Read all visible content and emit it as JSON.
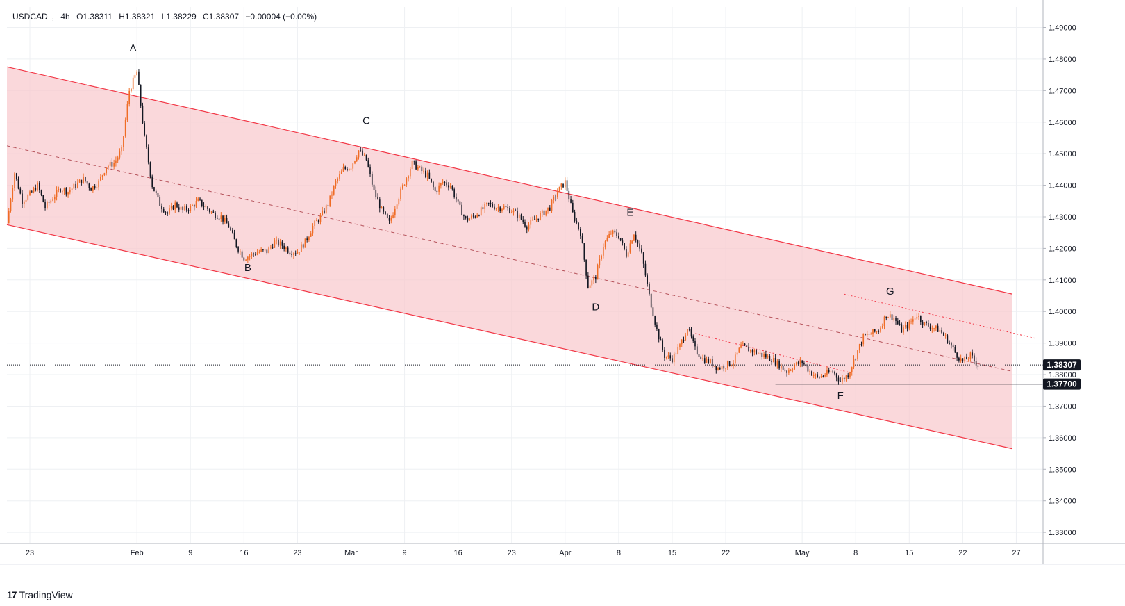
{
  "legend": {
    "symbol": "USDCAD",
    "interval": "4h",
    "open": "O1.38311",
    "high": "H1.38321",
    "low": "L1.38229",
    "close": "C1.38307",
    "change": "−0.00004 (−0.00%)"
  },
  "brand": {
    "logo": "17",
    "name": "TradingView"
  },
  "colors": {
    "channel_fill": "#f8c8cc",
    "channel_line": "#f23645",
    "bull_candle": "#ef6c25",
    "bear_candle": "#131722",
    "current_price_badge": "#131722",
    "support_badge": "#131722"
  },
  "chart_data": {
    "type": "candlestick",
    "symbol": "USDCAD",
    "interval": "4h",
    "ylim": [
      1.3265,
      1.4965
    ],
    "y_ticks": [
      "1.49000",
      "1.48000",
      "1.47000",
      "1.46000",
      "1.45000",
      "1.44000",
      "1.43000",
      "1.42000",
      "1.41000",
      "1.40000",
      "1.39000",
      "1.38000",
      "1.37000",
      "1.36000",
      "1.35000",
      "1.34000",
      "1.33000"
    ],
    "x_ticks": [
      "23",
      "Feb",
      "9",
      "16",
      "23",
      "Mar",
      "9",
      "16",
      "23",
      "Apr",
      "8",
      "15",
      "22",
      "May",
      "8",
      "15",
      "22",
      "27"
    ],
    "x_tick_index": [
      0,
      14,
      21,
      28,
      35,
      42,
      49,
      56,
      63,
      70,
      77,
      84,
      91,
      101,
      108,
      115,
      122,
      129
    ],
    "x_range_index": [
      -3,
      132.5
    ],
    "current_price": "1.38307",
    "support_price": "1.37700",
    "price_path": [
      {
        "i": -3,
        "p": 1.428
      },
      {
        "i": -2,
        "p": 1.444
      },
      {
        "i": -1,
        "p": 1.435
      },
      {
        "i": 0,
        "p": 1.437
      },
      {
        "i": 1,
        "p": 1.44
      },
      {
        "i": 2,
        "p": 1.433
      },
      {
        "i": 3,
        "p": 1.436
      },
      {
        "i": 4,
        "p": 1.439
      },
      {
        "i": 5,
        "p": 1.438
      },
      {
        "i": 6,
        "p": 1.44
      },
      {
        "i": 7,
        "p": 1.442
      },
      {
        "i": 8,
        "p": 1.439
      },
      {
        "i": 9,
        "p": 1.441
      },
      {
        "i": 10,
        "p": 1.446
      },
      {
        "i": 11,
        "p": 1.447
      },
      {
        "i": 12,
        "p": 1.451
      },
      {
        "i": 13,
        "p": 1.47
      },
      {
        "i": 14,
        "p": 1.476
      },
      {
        "i": 15,
        "p": 1.455
      },
      {
        "i": 16,
        "p": 1.44
      },
      {
        "i": 17,
        "p": 1.434
      },
      {
        "i": 18,
        "p": 1.431
      },
      {
        "i": 19,
        "p": 1.434
      },
      {
        "i": 20,
        "p": 1.432
      },
      {
        "i": 21,
        "p": 1.433
      },
      {
        "i": 22,
        "p": 1.435
      },
      {
        "i": 23,
        "p": 1.433
      },
      {
        "i": 24,
        "p": 1.431
      },
      {
        "i": 25,
        "p": 1.43
      },
      {
        "i": 26,
        "p": 1.427
      },
      {
        "i": 27,
        "p": 1.421
      },
      {
        "i": 28,
        "p": 1.417
      },
      {
        "i": 29,
        "p": 1.418
      },
      {
        "i": 30,
        "p": 1.419
      },
      {
        "i": 31,
        "p": 1.419
      },
      {
        "i": 32,
        "p": 1.422
      },
      {
        "i": 33,
        "p": 1.421
      },
      {
        "i": 34,
        "p": 1.419
      },
      {
        "i": 35,
        "p": 1.419
      },
      {
        "i": 36,
        "p": 1.422
      },
      {
        "i": 37,
        "p": 1.427
      },
      {
        "i": 38,
        "p": 1.43
      },
      {
        "i": 39,
        "p": 1.434
      },
      {
        "i": 40,
        "p": 1.441
      },
      {
        "i": 41,
        "p": 1.445
      },
      {
        "i": 42,
        "p": 1.446
      },
      {
        "i": 43,
        "p": 1.451
      },
      {
        "i": 44,
        "p": 1.448
      },
      {
        "i": 45,
        "p": 1.438
      },
      {
        "i": 46,
        "p": 1.432
      },
      {
        "i": 47,
        "p": 1.428
      },
      {
        "i": 48,
        "p": 1.435
      },
      {
        "i": 49,
        "p": 1.441
      },
      {
        "i": 50,
        "p": 1.447
      },
      {
        "i": 51,
        "p": 1.445
      },
      {
        "i": 52,
        "p": 1.443
      },
      {
        "i": 53,
        "p": 1.438
      },
      {
        "i": 54,
        "p": 1.441
      },
      {
        "i": 55,
        "p": 1.44
      },
      {
        "i": 56,
        "p": 1.434
      },
      {
        "i": 57,
        "p": 1.429
      },
      {
        "i": 58,
        "p": 1.43
      },
      {
        "i": 59,
        "p": 1.432
      },
      {
        "i": 60,
        "p": 1.434
      },
      {
        "i": 61,
        "p": 1.433
      },
      {
        "i": 62,
        "p": 1.433
      },
      {
        "i": 63,
        "p": 1.432
      },
      {
        "i": 64,
        "p": 1.43
      },
      {
        "i": 65,
        "p": 1.427
      },
      {
        "i": 66,
        "p": 1.429
      },
      {
        "i": 67,
        "p": 1.431
      },
      {
        "i": 68,
        "p": 1.433
      },
      {
        "i": 69,
        "p": 1.438
      },
      {
        "i": 70,
        "p": 1.441
      },
      {
        "i": 71,
        "p": 1.431
      },
      {
        "i": 72,
        "p": 1.425
      },
      {
        "i": 73,
        "p": 1.408
      },
      {
        "i": 74,
        "p": 1.411
      },
      {
        "i": 75,
        "p": 1.421
      },
      {
        "i": 76,
        "p": 1.425
      },
      {
        "i": 77,
        "p": 1.424
      },
      {
        "i": 78,
        "p": 1.418
      },
      {
        "i": 79,
        "p": 1.425
      },
      {
        "i": 80,
        "p": 1.418
      },
      {
        "i": 81,
        "p": 1.405
      },
      {
        "i": 82,
        "p": 1.394
      },
      {
        "i": 83,
        "p": 1.386
      },
      {
        "i": 84,
        "p": 1.385
      },
      {
        "i": 85,
        "p": 1.389
      },
      {
        "i": 86,
        "p": 1.395
      },
      {
        "i": 87,
        "p": 1.388
      },
      {
        "i": 88,
        "p": 1.385
      },
      {
        "i": 89,
        "p": 1.384
      },
      {
        "i": 90,
        "p": 1.382
      },
      {
        "i": 91,
        "p": 1.383
      },
      {
        "i": 92,
        "p": 1.384
      },
      {
        "i": 93,
        "p": 1.389
      },
      {
        "i": 94,
        "p": 1.388
      },
      {
        "i": 95,
        "p": 1.387
      },
      {
        "i": 96,
        "p": 1.386
      },
      {
        "i": 97,
        "p": 1.385
      },
      {
        "i": 98,
        "p": 1.383
      },
      {
        "i": 99,
        "p": 1.381
      },
      {
        "i": 100,
        "p": 1.383
      },
      {
        "i": 101,
        "p": 1.384
      },
      {
        "i": 102,
        "p": 1.381
      },
      {
        "i": 103,
        "p": 1.379
      },
      {
        "i": 104,
        "p": 1.38
      },
      {
        "i": 105,
        "p": 1.381
      },
      {
        "i": 106,
        "p": 1.378
      },
      {
        "i": 107,
        "p": 1.38
      },
      {
        "i": 108,
        "p": 1.386
      },
      {
        "i": 109,
        "p": 1.392
      },
      {
        "i": 110,
        "p": 1.393
      },
      {
        "i": 111,
        "p": 1.394
      },
      {
        "i": 112,
        "p": 1.399
      },
      {
        "i": 113,
        "p": 1.398
      },
      {
        "i": 114,
        "p": 1.394
      },
      {
        "i": 115,
        "p": 1.396
      },
      {
        "i": 116,
        "p": 1.399
      },
      {
        "i": 117,
        "p": 1.396
      },
      {
        "i": 118,
        "p": 1.395
      },
      {
        "i": 119,
        "p": 1.394
      },
      {
        "i": 120,
        "p": 1.391
      },
      {
        "i": 121,
        "p": 1.387
      },
      {
        "i": 122,
        "p": 1.384
      },
      {
        "i": 123,
        "p": 1.386
      },
      {
        "i": 124,
        "p": 1.383
      }
    ],
    "channel": {
      "upper": [
        {
          "i": -3,
          "p": 1.4775
        },
        {
          "i": 128.5,
          "p": 1.4055
        }
      ],
      "lower": [
        {
          "i": -3,
          "p": 1.4275
        },
        {
          "i": 128.5,
          "p": 1.3565
        }
      ],
      "mid": [
        {
          "i": -3,
          "p": 1.4525
        },
        {
          "i": 128.5,
          "p": 1.381
        }
      ]
    },
    "dotted_lines": [
      [
        {
          "i": 87,
          "p": 1.393
        },
        {
          "i": 107.5,
          "p": 1.3805
        }
      ],
      [
        {
          "i": 106.5,
          "p": 1.4055
        },
        {
          "i": 131.5,
          "p": 1.3915
        }
      ]
    ],
    "support_segment_start_i": 97.5,
    "wave_labels": [
      {
        "label": "A",
        "i": 13.5,
        "p": 1.4815,
        "pos": "above"
      },
      {
        "label": "B",
        "i": 28.5,
        "p": 1.4155,
        "pos": "below"
      },
      {
        "label": "C",
        "i": 44,
        "p": 1.4585,
        "pos": "above"
      },
      {
        "label": "D",
        "i": 74,
        "p": 1.403,
        "pos": "below"
      },
      {
        "label": "E",
        "i": 78.5,
        "p": 1.4295,
        "pos": "above"
      },
      {
        "label": "F",
        "i": 106,
        "p": 1.375,
        "pos": "below"
      },
      {
        "label": "G",
        "i": 112.5,
        "p": 1.4045,
        "pos": "above"
      }
    ]
  }
}
